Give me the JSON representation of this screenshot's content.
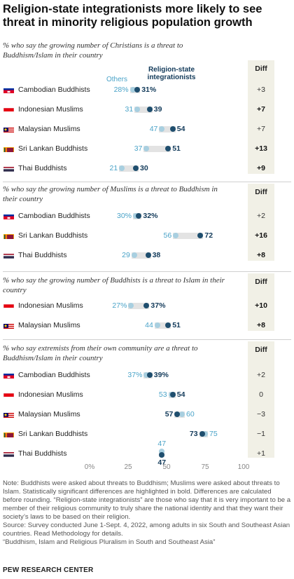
{
  "title": "Religion-state integrationists more likely to see threat in minority religious population growth",
  "legend": {
    "others": "Others",
    "integrationists": "Religion-state integrationists"
  },
  "diff_label": "Diff",
  "colors": {
    "others": "#a8cfe0",
    "integrationists": "#1f4e6e",
    "diff_bg": "#f1f0e6"
  },
  "chart_data": [
    {
      "type": "dot",
      "subtitle": "% who say the growing number of Christians is a threat to Buddhism/Islam in their country",
      "rows": [
        {
          "label": "Cambodian Buddhists",
          "flag": "cambodia-flag",
          "others": 28,
          "integrationists": 31,
          "others_text": "28%",
          "integrationists_text": "31%",
          "diff": "+3",
          "diff_bold": false
        },
        {
          "label": "Indonesian Muslims",
          "flag": "indonesia-flag",
          "others": 31,
          "integrationists": 39,
          "others_text": "31",
          "integrationists_text": "39",
          "diff": "+7",
          "diff_bold": true
        },
        {
          "label": "Malaysian Muslims",
          "flag": "malaysia-flag",
          "others": 47,
          "integrationists": 54,
          "others_text": "47",
          "integrationists_text": "54",
          "diff": "+7",
          "diff_bold": false
        },
        {
          "label": "Sri Lankan Buddhists",
          "flag": "srilanka-flag",
          "others": 37,
          "integrationists": 51,
          "others_text": "37",
          "integrationists_text": "51",
          "diff": "+13",
          "diff_bold": true
        },
        {
          "label": "Thai Buddhists",
          "flag": "thailand-flag",
          "others": 21,
          "integrationists": 30,
          "others_text": "21",
          "integrationists_text": "30",
          "diff": "+9",
          "diff_bold": true
        }
      ]
    },
    {
      "type": "dot",
      "subtitle": "% who say the growing number of Muslims is a threat to Buddhism in their country",
      "rows": [
        {
          "label": "Cambodian Buddhists",
          "flag": "cambodia-flag",
          "others": 30,
          "integrationists": 32,
          "others_text": "30%",
          "integrationists_text": "32%",
          "diff": "+2",
          "diff_bold": false
        },
        {
          "label": "Sri Lankan Buddhists",
          "flag": "srilanka-flag",
          "others": 56,
          "integrationists": 72,
          "others_text": "56",
          "integrationists_text": "72",
          "diff": "+16",
          "diff_bold": true
        },
        {
          "label": "Thai Buddhists",
          "flag": "thailand-flag",
          "others": 29,
          "integrationists": 38,
          "others_text": "29",
          "integrationists_text": "38",
          "diff": "+8",
          "diff_bold": true
        }
      ]
    },
    {
      "type": "dot",
      "subtitle": "% who say the growing number of Buddhists is a threat to Islam in their country",
      "rows": [
        {
          "label": "Indonesian Muslims",
          "flag": "indonesia-flag",
          "others": 27,
          "integrationists": 37,
          "others_text": "27%",
          "integrationists_text": "37%",
          "diff": "+10",
          "diff_bold": true
        },
        {
          "label": "Malaysian Muslims",
          "flag": "malaysia-flag",
          "others": 44,
          "integrationists": 51,
          "others_text": "44",
          "integrationists_text": "51",
          "diff": "+8",
          "diff_bold": true
        }
      ]
    },
    {
      "type": "dot",
      "subtitle": "% who say extremists from their own community are a threat to Buddhism/Islam in their country",
      "xticks": [
        "0%",
        "25",
        "50",
        "75",
        "100"
      ],
      "xlim": [
        0,
        100
      ],
      "rows": [
        {
          "label": "Cambodian Buddhists",
          "flag": "cambodia-flag",
          "others": 37,
          "integrationists": 39,
          "others_text": "37%",
          "integrationists_text": "39%",
          "diff": "+2",
          "diff_bold": false
        },
        {
          "label": "Indonesian Muslims",
          "flag": "indonesia-flag",
          "others": 53,
          "integrationists": 54,
          "others_text": "53",
          "integrationists_text": "54",
          "diff": "0",
          "diff_bold": false
        },
        {
          "label": "Malaysian Muslims",
          "flag": "malaysia-flag",
          "others": 60,
          "integrationists": 57,
          "others_text": "60",
          "integrationists_text": "57",
          "diff": "−3",
          "diff_bold": false
        },
        {
          "label": "Sri Lankan Buddhists",
          "flag": "srilanka-flag",
          "others": 75,
          "integrationists": 73,
          "others_text": "75",
          "integrationists_text": "73",
          "diff": "−1",
          "diff_bold": false
        },
        {
          "label": "Thai Buddhists",
          "flag": "thailand-flag",
          "others": 47,
          "integrationists": 47,
          "others_text": "47",
          "integrationists_text": "47",
          "diff": "+1",
          "diff_bold": false
        }
      ]
    }
  ],
  "notes": [
    "Note: Buddhists were asked about threats to Buddhism; Muslims were asked about threats to Islam. Statistically significant differences are highlighted in bold. Differences are calculated before rounding. “Religion-state integrationists” are those who say that it is very important to be a member of their religious community to truly share the national identity and that they want their society’s laws to be based on their religion.",
    "Source: Survey conducted June 1-Sept. 4, 2022, among adults in six South and Southeast Asian countries. Read Methodology for details.",
    "“Buddhism, Islam and Religious Pluralism in South and Southeast Asia”"
  ],
  "brand": "PEW RESEARCH CENTER"
}
